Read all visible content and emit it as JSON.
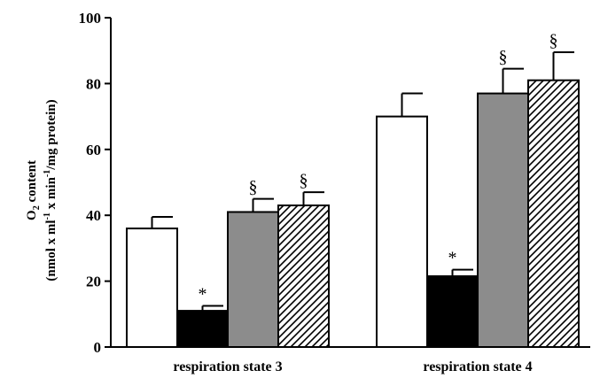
{
  "chart_data": {
    "type": "bar",
    "categories": [
      "respiration state 3",
      "respiration state 4"
    ],
    "series": [
      {
        "values": [
          36,
          70
        ],
        "errors": [
          3.5,
          7
        ],
        "fill": "#ffffff",
        "pattern": "none",
        "annotations": [
          "",
          ""
        ]
      },
      {
        "values": [
          11,
          21.5
        ],
        "errors": [
          1.5,
          2
        ],
        "fill": "#000000",
        "pattern": "none",
        "annotations": [
          "*",
          "*"
        ]
      },
      {
        "values": [
          41,
          77
        ],
        "errors": [
          4,
          7.5
        ],
        "fill": "#8c8c8c",
        "pattern": "none",
        "annotations": [
          "§",
          "§"
        ]
      },
      {
        "values": [
          43,
          81
        ],
        "errors": [
          4,
          8.5
        ],
        "fill": "#ffffff",
        "pattern": "diagonal-hatch",
        "annotations": [
          "§",
          "§"
        ]
      }
    ],
    "ylabel_line1_prefix": "O",
    "ylabel_line1_sub": "2",
    "ylabel_line1_suffix": " content",
    "ylabel_line2_parts": [
      "(nmol  x  ml",
      "-1",
      " x min",
      "-1",
      "/mg protein)"
    ],
    "ylim": [
      0,
      100
    ],
    "yticks": [
      0,
      20,
      40,
      60,
      80,
      100
    ],
    "grid": false,
    "legend": "none"
  }
}
